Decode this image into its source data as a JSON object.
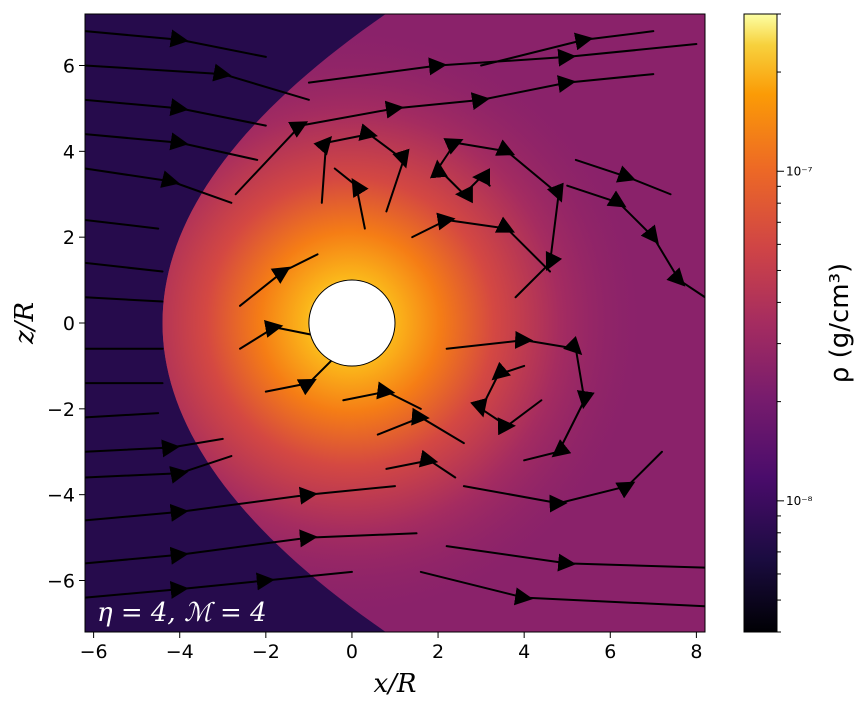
{
  "chart_data": {
    "type": "heatmap",
    "title": "",
    "xlabel": "x/R",
    "ylabel": "z/R",
    "xlim": [
      -6.2,
      8.2
    ],
    "ylim": [
      -7.2,
      7.2
    ],
    "xticks": [
      -6,
      -4,
      -2,
      0,
      2,
      4,
      6,
      8
    ],
    "yticks": [
      -6,
      -4,
      -2,
      0,
      2,
      4,
      6
    ],
    "annotation": "η = 4, ℳ = 4",
    "colorbar": {
      "label": "ρ (g/cm³)",
      "scale": "log",
      "colormap": "inferno",
      "range": [
        4e-09,
        3e-07
      ],
      "major_ticks": [
        1e-08,
        1e-07
      ],
      "major_tick_labels": [
        "10⁻⁸",
        "10⁻⁷"
      ],
      "minor_ticks": [
        4e-09,
        5e-09,
        6e-09,
        7e-09,
        8e-09,
        9e-09,
        2e-08,
        3e-08,
        4e-08,
        5e-08,
        6e-08,
        7e-08,
        8e-08,
        9e-08,
        2e-07,
        3e-07
      ]
    },
    "body": {
      "shape": "circle",
      "center": [
        0,
        0
      ],
      "radius": 1,
      "color": "#ffffff"
    },
    "ambient_density": 1.6e-08,
    "bow_shock_upstream_density": 6.5e-09,
    "peak_density_near_body": 2e-07,
    "streamlines": [
      [
        [
          -6.2,
          6.8
        ],
        [
          -4,
          6.6
        ],
        [
          -2,
          6.2
        ]
      ],
      [
        [
          -6.2,
          6.0
        ],
        [
          -3,
          5.8
        ],
        [
          -1,
          5.2
        ]
      ],
      [
        [
          -6.2,
          5.2
        ],
        [
          -4,
          5.0
        ],
        [
          -2,
          4.6
        ]
      ],
      [
        [
          -6.2,
          4.4
        ],
        [
          -4,
          4.2
        ],
        [
          -2.2,
          3.8
        ]
      ],
      [
        [
          -6.2,
          3.6
        ],
        [
          -4.2,
          3.3
        ],
        [
          -2.8,
          2.8
        ]
      ],
      [
        [
          -6.2,
          2.4
        ],
        [
          -4.5,
          2.2
        ]
      ],
      [
        [
          -6.2,
          1.4
        ],
        [
          -4.4,
          1.2
        ]
      ],
      [
        [
          -6.2,
          0.6
        ],
        [
          -4.4,
          0.5
        ]
      ],
      [
        [
          -6.2,
          -0.6
        ],
        [
          -4.4,
          -0.6
        ]
      ],
      [
        [
          -6.2,
          -1.4
        ],
        [
          -4.4,
          -1.4
        ]
      ],
      [
        [
          -6.2,
          -2.2
        ],
        [
          -4.5,
          -2.1
        ]
      ],
      [
        [
          -6.2,
          -3.0
        ],
        [
          -4.2,
          -2.9
        ],
        [
          -3,
          -2.7
        ]
      ],
      [
        [
          -6.2,
          -3.6
        ],
        [
          -4,
          -3.5
        ],
        [
          -2.8,
          -3.1
        ]
      ],
      [
        [
          -6.2,
          -4.6
        ],
        [
          -4,
          -4.4
        ],
        [
          -1,
          -4.0
        ],
        [
          1,
          -3.8
        ]
      ],
      [
        [
          -6.2,
          -5.6
        ],
        [
          -4,
          -5.4
        ],
        [
          -1,
          -5.0
        ],
        [
          1.5,
          -4.9
        ]
      ],
      [
        [
          -6.2,
          -6.4
        ],
        [
          -4,
          -6.2
        ],
        [
          -2,
          -6.0
        ],
        [
          0,
          -5.8
        ]
      ],
      [
        [
          -2.7,
          3.0
        ],
        [
          -1.2,
          4.6
        ],
        [
          1,
          5.0
        ],
        [
          3,
          5.2
        ],
        [
          5,
          5.6
        ],
        [
          7,
          5.8
        ]
      ],
      [
        [
          -1,
          5.6
        ],
        [
          2,
          6.0
        ],
        [
          5,
          6.2
        ],
        [
          8,
          6.5
        ]
      ],
      [
        [
          3.2,
          3.2
        ],
        [
          3.0,
          3.4
        ],
        [
          2.6,
          3.0
        ],
        [
          2.0,
          3.6
        ],
        [
          2.4,
          4.2
        ],
        [
          3.6,
          4.0
        ],
        [
          4.8,
          3.0
        ],
        [
          4.6,
          1.4
        ],
        [
          3.8,
          0.6
        ]
      ],
      [
        [
          1.4,
          2.0
        ],
        [
          2.2,
          2.4
        ],
        [
          3.6,
          2.2
        ],
        [
          4.6,
          1.2
        ]
      ],
      [
        [
          -0.7,
          2.8
        ],
        [
          -0.6,
          4.2
        ],
        [
          0.4,
          4.4
        ],
        [
          1.2,
          3.8
        ],
        [
          0.8,
          2.6
        ]
      ],
      [
        [
          0.3,
          2.2
        ],
        [
          0.1,
          3.2
        ],
        [
          -0.4,
          3.6
        ]
      ],
      [
        [
          -2.6,
          0.4
        ],
        [
          -1.6,
          1.2
        ],
        [
          -0.8,
          1.6
        ]
      ],
      [
        [
          -2.6,
          -0.6
        ],
        [
          -1.8,
          -0.1
        ],
        [
          -0.8,
          -0.3
        ]
      ],
      [
        [
          -2.0,
          -1.6
        ],
        [
          -1.0,
          -1.4
        ],
        [
          -0.4,
          -0.8
        ]
      ],
      [
        [
          -0.2,
          -1.8
        ],
        [
          0.8,
          -1.6
        ],
        [
          1.6,
          -2.0
        ]
      ],
      [
        [
          0.6,
          -2.6
        ],
        [
          1.6,
          -2.2
        ],
        [
          2.6,
          -2.8
        ]
      ],
      [
        [
          0.8,
          -3.4
        ],
        [
          1.8,
          -3.2
        ],
        [
          2.4,
          -3.6
        ]
      ],
      [
        [
          4.0,
          -1.0
        ],
        [
          3.4,
          -1.2
        ],
        [
          3.0,
          -2.0
        ],
        [
          3.6,
          -2.4
        ],
        [
          4.4,
          -1.8
        ]
      ],
      [
        [
          2.2,
          -0.6
        ],
        [
          4.0,
          -0.4
        ],
        [
          5.2,
          -0.6
        ],
        [
          5.4,
          -1.8
        ],
        [
          4.8,
          -3.0
        ],
        [
          4.0,
          -3.2
        ]
      ],
      [
        [
          2.6,
          -3.8
        ],
        [
          4.8,
          -4.2
        ],
        [
          6.4,
          -3.8
        ],
        [
          7.2,
          -3.0
        ]
      ],
      [
        [
          2.2,
          -5.2
        ],
        [
          5,
          -5.6
        ],
        [
          8.2,
          -5.7
        ]
      ],
      [
        [
          5.0,
          3.2
        ],
        [
          6.2,
          2.8
        ],
        [
          7.0,
          2.0
        ],
        [
          7.6,
          1.0
        ],
        [
          8.2,
          0.6
        ]
      ],
      [
        [
          5.2,
          3.8
        ],
        [
          6.4,
          3.4
        ],
        [
          7.4,
          3.0
        ]
      ],
      [
        [
          1.6,
          -5.8
        ],
        [
          4,
          -6.4
        ],
        [
          8.2,
          -6.6
        ]
      ],
      [
        [
          3,
          6.0
        ],
        [
          5.4,
          6.6
        ],
        [
          7,
          6.8
        ]
      ]
    ]
  }
}
